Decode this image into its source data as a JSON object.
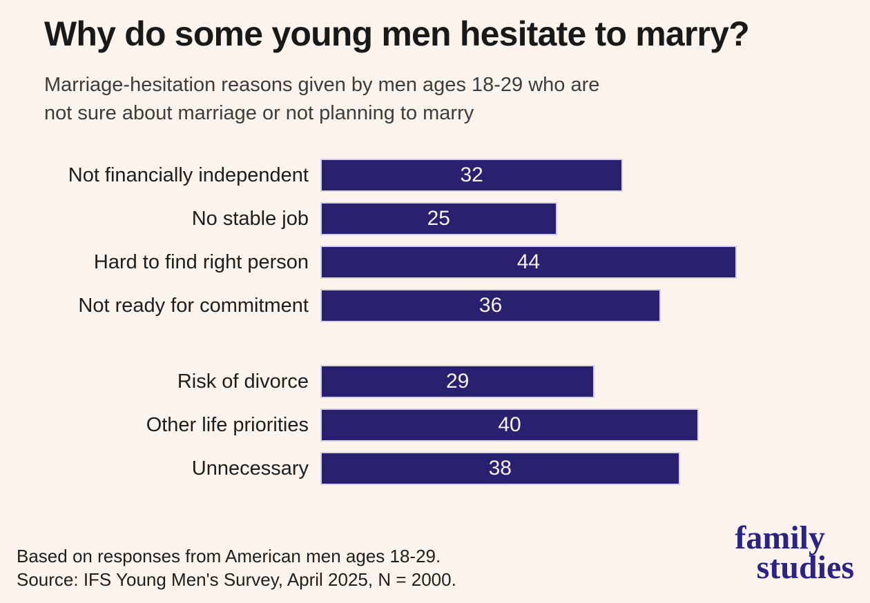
{
  "title": "Why do some young men hesitate to marry?",
  "subtitle_line1": "Marriage-hesitation reasons given by men ages 18-29 who are",
  "subtitle_line2": "not sure about marriage or not planning to marry",
  "chart_data": {
    "type": "bar",
    "orientation": "horizontal",
    "title": "Why do some young men hesitate to marry?",
    "xlabel": "",
    "ylabel": "",
    "xlim": [
      0,
      56
    ],
    "grid": false,
    "value_labels": "centered inside bars",
    "bar_color": "#29206f",
    "bar_border_color": "#d6d0e6",
    "value_label_color": "#f8f1ea",
    "groups": [
      {
        "categories": [
          "Not financially independent",
          "No stable job",
          "Hard to find right person",
          "Not ready for commitment"
        ],
        "values": [
          32,
          25,
          44,
          36
        ]
      },
      {
        "categories": [
          "Risk of divorce",
          "Other life priorities",
          "Unnecessary"
        ],
        "values": [
          29,
          40,
          38
        ]
      }
    ]
  },
  "footer": {
    "line1": "Based on responses from American men ages 18-29.",
    "line2": "Source: IFS Young Men's Survey, April 2025, N = 2000."
  },
  "logo": {
    "line1": "family",
    "line2": "studies",
    "color": "#2b2483"
  }
}
